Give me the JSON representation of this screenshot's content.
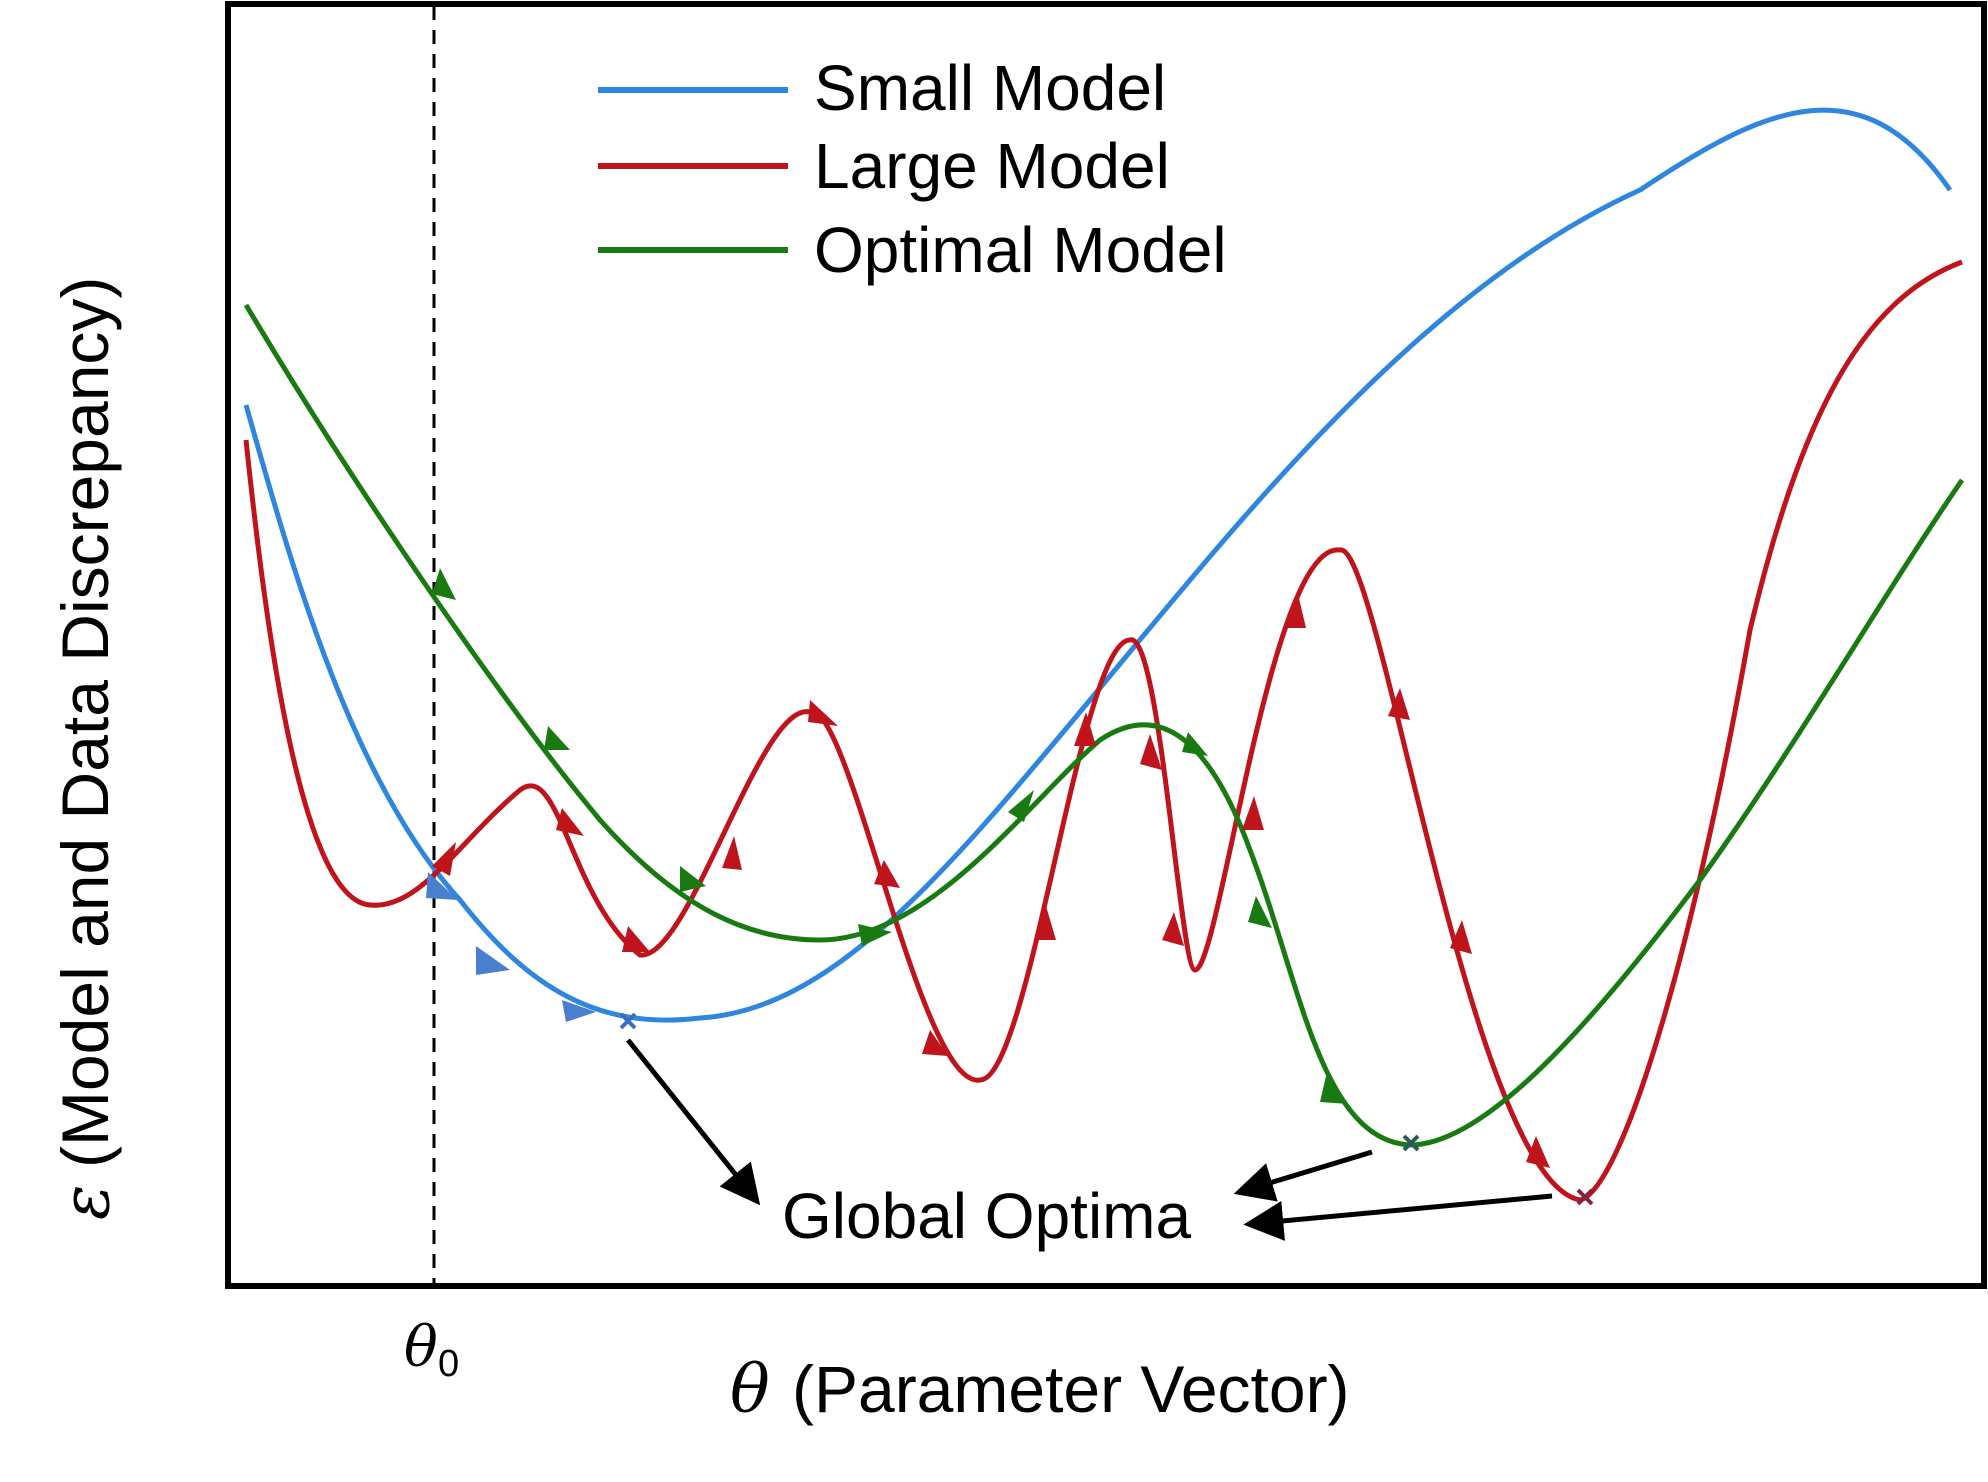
{
  "chart": {
    "xlabel_symbol": "θ",
    "xlabel_text": "(Parameter Vector)",
    "ylabel_symbol": "ε",
    "ylabel_text": "(Model and Data Discrepancy)",
    "theta0_symbol": "θ",
    "theta0_subscript": "0"
  },
  "legend": {
    "items": [
      {
        "label": "Small Model",
        "color": "#2e86de"
      },
      {
        "label": "Large Model",
        "color": "#c0141c"
      },
      {
        "label": "Optimal Model",
        "color": "#1a7a12"
      }
    ]
  },
  "annotation": {
    "label": "Global Optima"
  },
  "colors": {
    "small": "#2e86de",
    "large": "#c0141c",
    "optimal": "#1a7a12",
    "frame": "#000000"
  }
}
